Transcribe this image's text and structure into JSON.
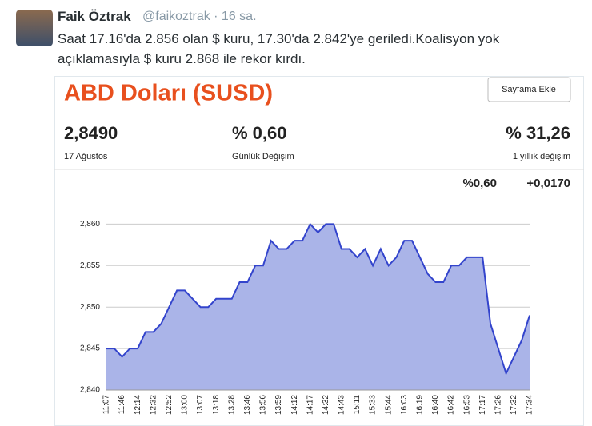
{
  "tweet": {
    "name": "Faik Öztrak",
    "handle": "@faikoztrak · 16 sa.",
    "text": "Saat 17.16'da 2.856 olan $ kuru, 17.30'da 2.842'ye geriledi.Koalisyon yok açıklamasıyla $ kuru 2.868 ile rekor kırdı."
  },
  "card": {
    "button": "Sayfama Ekle",
    "price": "2,8490",
    "date": "17 Ağustos",
    "daily_change": "% 0,60",
    "daily_label": "Günlük Değişim",
    "yearly_change": "% 31,26",
    "yearly_label": "1 yıllık değişim",
    "change_pct": "%0,60",
    "change_abs": "+0,0170"
  },
  "chart_data": {
    "type": "line",
    "title": "ABD Doları (SUSD)",
    "categories": [
      "11:07",
      null,
      "11:46",
      null,
      "12:14",
      null,
      "12:32",
      null,
      "12:52",
      null,
      "13:00",
      null,
      "13:07",
      null,
      "13:18",
      null,
      "13:28",
      null,
      "13:46",
      null,
      "13:56",
      null,
      "13:59",
      null,
      "14:12",
      null,
      "14:17",
      null,
      "14:32",
      null,
      "14:43",
      null,
      "15:11",
      null,
      "15:33",
      null,
      "15:44",
      null,
      "16:03",
      null,
      "16:19",
      null,
      "16:40",
      null,
      "16:42",
      null,
      "16:53",
      null,
      "17:17",
      null,
      "17:26",
      null,
      "17:32",
      null,
      "17:34"
    ],
    "series": [
      {
        "color": "#3344cc",
        "fill": "#aab4e8",
        "values": [
          2.845,
          2.845,
          2.844,
          2.845,
          2.845,
          2.847,
          2.847,
          2.848,
          2.85,
          2.852,
          2.852,
          2.851,
          2.85,
          2.85,
          2.851,
          2.851,
          2.851,
          2.853,
          2.853,
          2.855,
          2.855,
          2.858,
          2.857,
          2.857,
          2.858,
          2.858,
          2.86,
          2.859,
          2.86,
          2.86,
          2.857,
          2.857,
          2.856,
          2.857,
          2.855,
          2.857,
          2.855,
          2.856,
          2.858,
          2.858,
          2.856,
          2.854,
          2.853,
          2.853,
          2.855,
          2.855,
          2.856,
          2.856,
          2.856,
          2.848,
          2.845,
          2.842,
          2.844,
          2.846,
          2.849
        ]
      }
    ],
    "ylim": [
      2.84,
      2.861
    ],
    "yticks": [
      {
        "value": 2.84,
        "label": "2,840"
      },
      {
        "value": 2.845,
        "label": "2,845"
      },
      {
        "value": 2.85,
        "label": "2,850"
      },
      {
        "value": 2.855,
        "label": "2,855"
      },
      {
        "value": 2.86,
        "label": "2,860"
      }
    ],
    "grid": true
  }
}
